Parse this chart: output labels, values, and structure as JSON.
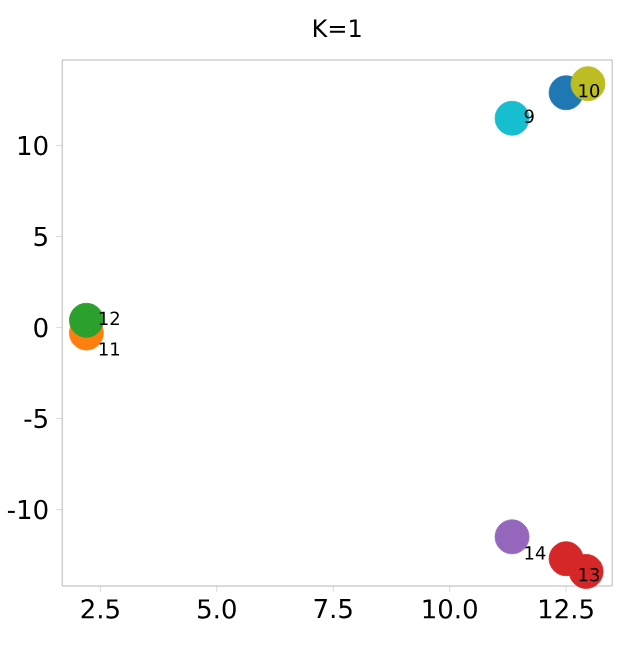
{
  "chart_data": {
    "type": "scatter",
    "title": "K=1",
    "x": [
      11.34,
      12.5,
      12.97,
      2.2,
      2.2,
      11.34,
      12.5,
      12.93
    ],
    "values": [
      11.5,
      12.9,
      13.4,
      -0.3,
      0.4,
      -11.5,
      -12.7,
      -13.4
    ],
    "colors": [
      "#17becf",
      "#1f77b4",
      "#bcbd22",
      "#ff7f0e",
      "#2ca02c",
      "#9467bd",
      "#d62728",
      "#d62728"
    ],
    "marker": "circle",
    "xlim": [
      1.68,
      13.49
    ],
    "ylim": [
      -14.2,
      14.7
    ],
    "xticks": [
      2.5,
      {
        "value": 5,
        "label": "5.0"
      },
      7.5,
      {
        "value": 10,
        "label": "10.0"
      },
      12.5
    ],
    "yticks": [
      -10,
      -5,
      0,
      5,
      10
    ],
    "annotations": [
      {
        "text": "9",
        "x": 11.34,
        "y": 11.5
      },
      {
        "text": "10",
        "x": 12.5,
        "y": 12.9
      },
      {
        "text": "12",
        "x": 2.2,
        "y": 0.4
      },
      {
        "text": "11",
        "x": 2.2,
        "y": -0.3
      },
      {
        "text": "14",
        "x": 11.34,
        "y": -11.5
      },
      {
        "text": "13",
        "x": 12.5,
        "y": -12.7
      }
    ]
  }
}
